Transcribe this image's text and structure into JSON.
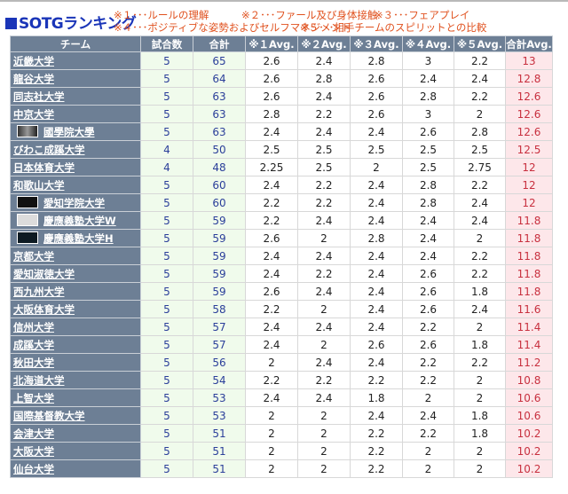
{
  "header": {
    "title": "SOTGランキング",
    "notes": [
      [
        "※１･･･ルールの理解",
        "※２･･･ファール及び身体接触",
        "※３･･･フェアプレイ"
      ],
      [
        "※４･･･ポジティブな姿勢およびセルフマネジメント",
        "※５･･･相手チームのスピリットとの比較"
      ]
    ]
  },
  "table": {
    "columns": [
      "チーム",
      "試合数",
      "合計",
      "※１Avg.",
      "※２Avg.",
      "※３Avg.",
      "※４Avg.",
      "※５Avg.",
      "合計Avg."
    ],
    "rows": [
      {
        "team": "近畿大学",
        "logo": "",
        "games": "5",
        "total": "65",
        "a1": "2.6",
        "a2": "2.4",
        "a3": "2.8",
        "a4": "3",
        "a5": "2.2",
        "avg": "13"
      },
      {
        "team": "龍谷大学",
        "logo": "",
        "games": "5",
        "total": "64",
        "a1": "2.6",
        "a2": "2.8",
        "a3": "2.6",
        "a4": "2.4",
        "a5": "2.4",
        "avg": "12.8"
      },
      {
        "team": "同志社大学",
        "logo": "",
        "games": "5",
        "total": "63",
        "a1": "2.6",
        "a2": "2.4",
        "a3": "2.6",
        "a4": "2.8",
        "a5": "2.2",
        "avg": "12.6"
      },
      {
        "team": "中京大学",
        "logo": "",
        "games": "5",
        "total": "63",
        "a1": "2.8",
        "a2": "2.2",
        "a3": "2.6",
        "a4": "3",
        "a5": "2",
        "avg": "12.6"
      },
      {
        "team": "國學院大學",
        "logo": "kokugakuin",
        "games": "5",
        "total": "63",
        "a1": "2.4",
        "a2": "2.4",
        "a3": "2.4",
        "a4": "2.6",
        "a5": "2.8",
        "avg": "12.6"
      },
      {
        "team": "びわこ成蹊大学",
        "logo": "",
        "games": "4",
        "total": "50",
        "a1": "2.5",
        "a2": "2.5",
        "a3": "2.5",
        "a4": "2.5",
        "a5": "2.5",
        "avg": "12.5"
      },
      {
        "team": "日本体育大学",
        "logo": "",
        "games": "4",
        "total": "48",
        "a1": "2.25",
        "a2": "2.5",
        "a3": "2",
        "a4": "2.5",
        "a5": "2.75",
        "avg": "12"
      },
      {
        "team": "和歌山大学",
        "logo": "",
        "games": "5",
        "total": "60",
        "a1": "2.4",
        "a2": "2.2",
        "a3": "2.4",
        "a4": "2.8",
        "a5": "2.2",
        "avg": "12"
      },
      {
        "team": "愛知学院大学",
        "logo": "aichigakuin",
        "games": "5",
        "total": "60",
        "a1": "2.2",
        "a2": "2.2",
        "a3": "2.4",
        "a4": "2.8",
        "a5": "2.4",
        "avg": "12"
      },
      {
        "team": "慶應義塾大学W",
        "logo": "keio-w",
        "games": "5",
        "total": "59",
        "a1": "2.2",
        "a2": "2.4",
        "a3": "2.4",
        "a4": "2.4",
        "a5": "2.4",
        "avg": "11.8"
      },
      {
        "team": "慶應義塾大学H",
        "logo": "keio-h",
        "games": "5",
        "total": "59",
        "a1": "2.6",
        "a2": "2",
        "a3": "2.8",
        "a4": "2.4",
        "a5": "2",
        "avg": "11.8"
      },
      {
        "team": "京都大学",
        "logo": "",
        "games": "5",
        "total": "59",
        "a1": "2.4",
        "a2": "2.4",
        "a3": "2.4",
        "a4": "2.4",
        "a5": "2.2",
        "avg": "11.8"
      },
      {
        "team": "愛知淑徳大学",
        "logo": "",
        "games": "5",
        "total": "59",
        "a1": "2.4",
        "a2": "2.2",
        "a3": "2.4",
        "a4": "2.6",
        "a5": "2.2",
        "avg": "11.8"
      },
      {
        "team": "西九州大学",
        "logo": "",
        "games": "5",
        "total": "59",
        "a1": "2.6",
        "a2": "2.4",
        "a3": "2.4",
        "a4": "2.6",
        "a5": "1.8",
        "avg": "11.8"
      },
      {
        "team": "大阪体育大学",
        "logo": "",
        "games": "5",
        "total": "58",
        "a1": "2.2",
        "a2": "2",
        "a3": "2.4",
        "a4": "2.6",
        "a5": "2.4",
        "avg": "11.6"
      },
      {
        "team": "信州大学",
        "logo": "",
        "games": "5",
        "total": "57",
        "a1": "2.4",
        "a2": "2.4",
        "a3": "2.4",
        "a4": "2.2",
        "a5": "2",
        "avg": "11.4"
      },
      {
        "team": "成蹊大学",
        "logo": "",
        "games": "5",
        "total": "57",
        "a1": "2.4",
        "a2": "2",
        "a3": "2.6",
        "a4": "2.6",
        "a5": "1.8",
        "avg": "11.4"
      },
      {
        "team": "秋田大学",
        "logo": "",
        "games": "5",
        "total": "56",
        "a1": "2",
        "a2": "2.4",
        "a3": "2.4",
        "a4": "2.2",
        "a5": "2.2",
        "avg": "11.2"
      },
      {
        "team": "北海道大学",
        "logo": "",
        "games": "5",
        "total": "54",
        "a1": "2.2",
        "a2": "2.2",
        "a3": "2.2",
        "a4": "2.2",
        "a5": "2",
        "avg": "10.8"
      },
      {
        "team": "上智大学",
        "logo": "",
        "games": "5",
        "total": "53",
        "a1": "2.4",
        "a2": "2.4",
        "a3": "1.8",
        "a4": "2",
        "a5": "2",
        "avg": "10.6"
      },
      {
        "team": "国際基督教大学",
        "logo": "",
        "games": "5",
        "total": "53",
        "a1": "2",
        "a2": "2",
        "a3": "2.4",
        "a4": "2.4",
        "a5": "1.8",
        "avg": "10.6"
      },
      {
        "team": "会津大学",
        "logo": "",
        "games": "5",
        "total": "51",
        "a1": "2",
        "a2": "2",
        "a3": "2.2",
        "a4": "2.2",
        "a5": "1.8",
        "avg": "10.2"
      },
      {
        "team": "大阪大学",
        "logo": "",
        "games": "5",
        "total": "51",
        "a1": "2",
        "a2": "2",
        "a3": "2.2",
        "a4": "2",
        "a5": "2",
        "avg": "10.2"
      },
      {
        "team": "仙台大学",
        "logo": "",
        "games": "5",
        "total": "51",
        "a1": "2",
        "a2": "2",
        "a3": "2.2",
        "a4": "2",
        "a5": "2",
        "avg": "10.2"
      }
    ]
  },
  "colors": {
    "title": "#1a35b8",
    "notes": "#e0511e",
    "header_bg": "#6d7f95",
    "games_bg": "#f0fbec",
    "avg_total_bg": "#fde7ea",
    "avg_total_text": "#c8303f"
  }
}
